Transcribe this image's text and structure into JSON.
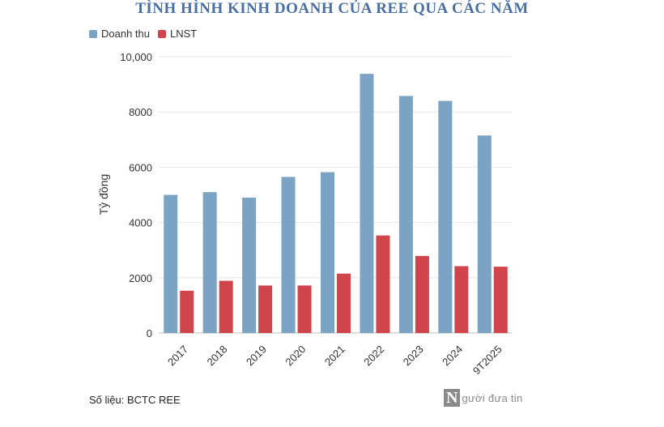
{
  "chart_data": {
    "type": "bar",
    "title": "TÌNH HÌNH KINH DOANH CỦA REE QUA CÁC NĂM",
    "ylabel": "Tỷ đồng",
    "xlabel": "",
    "ylim": [
      0,
      10000
    ],
    "yticks": [
      0,
      2000,
      4000,
      6000,
      8000,
      10000
    ],
    "ytick_labels": [
      "0",
      "2000",
      "4000",
      "6000",
      "8000",
      "10,000"
    ],
    "grid": true,
    "legend_position": "top-left",
    "categories": [
      "2017",
      "2018",
      "2019",
      "2020",
      "2021",
      "2022",
      "2023",
      "2024",
      "9T2025"
    ],
    "series": [
      {
        "name": "Doanh thu",
        "color": "#7ba3c4",
        "values": [
          5000,
          5100,
          4900,
          5650,
          5820,
          9380,
          8580,
          8400,
          7150
        ]
      },
      {
        "name": "LNST",
        "color": "#cf454b",
        "values": [
          1530,
          1890,
          1720,
          1720,
          2150,
          3530,
          2790,
          2420,
          2400
        ]
      }
    ]
  },
  "source": "Số liệu: BCTC REE",
  "logo": {
    "mark": "N",
    "text": "gười đưa tin"
  }
}
